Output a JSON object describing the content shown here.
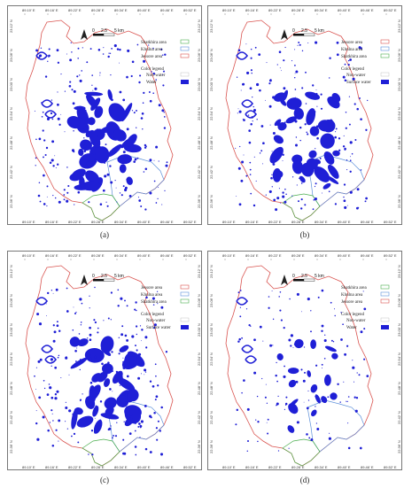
{
  "colors": {
    "jessore": "#d9534f",
    "khulna": "#5b8fd9",
    "satkhira": "#4caf50",
    "water": "#1f1fd6",
    "frame": "#777777"
  },
  "top_axis_ticks": [
    "89.10' E",
    "89.16' E",
    "89.22' E",
    "89.28' E",
    "89.34' E",
    "89.40' E",
    "89.46' E",
    "89.52' E"
  ],
  "bottom_axis_ticks": [
    "89.10' E",
    "89.16' E",
    "89.22' E",
    "89.28' E",
    "89.34' E",
    "89.40' E",
    "89.46' E",
    "89.52' E"
  ],
  "side_axis_ticks": [
    "23.12' N",
    "23.06' N",
    "23.00' N",
    "22.54' N",
    "22.48' N",
    "22.42' N",
    "22.36' N"
  ],
  "scalebar": {
    "zero": "0",
    "mid": "2.5",
    "end": "5 km"
  },
  "north_arrow": "north-arrow-icon",
  "panels": [
    {
      "caption": "(a)",
      "legend": [
        {
          "label": "Shatkhira area",
          "color": "#4caf50"
        },
        {
          "label": "Khulna area",
          "color": "#5b8fd9"
        },
        {
          "label": "Jessore area",
          "color": "#d9534f"
        }
      ],
      "color_legend_title": "",
      "nonwater_label": "Non-water",
      "water_label": "Water",
      "coverage": 1.0
    },
    {
      "caption": "(b)",
      "legend": [
        {
          "label": "Jessore area",
          "color": "#d9534f"
        },
        {
          "label": "Khulna area",
          "color": "#5b8fd9"
        },
        {
          "label": "Shatkhira area",
          "color": "#4caf50"
        }
      ],
      "color_legend_title": "Color legend",
      "nonwater_label": "Non-water",
      "water_label": "Surface water",
      "coverage": 0.95
    },
    {
      "caption": "(c)",
      "legend": [
        {
          "label": "Jessore area",
          "color": "#d9534f"
        },
        {
          "label": "Khulna area",
          "color": "#5b8fd9"
        },
        {
          "label": "Shatkhira area",
          "color": "#4caf50"
        }
      ],
      "color_legend_title": "Color legend",
      "nonwater_label": "Non-water",
      "water_label": "Surface water",
      "coverage": 1.0
    },
    {
      "caption": "(d)",
      "legend": [
        {
          "label": "Shatkhira area",
          "color": "#4caf50"
        },
        {
          "label": "Khulna area",
          "color": "#5b8fd9"
        },
        {
          "label": "Jessore area",
          "color": "#d9534f"
        }
      ],
      "color_legend_title": "Color legend",
      "nonwater_label": "Non-water",
      "water_label": "Water",
      "coverage": 0.45
    }
  ],
  "panel_a_color_legend_title": "Color legend"
}
